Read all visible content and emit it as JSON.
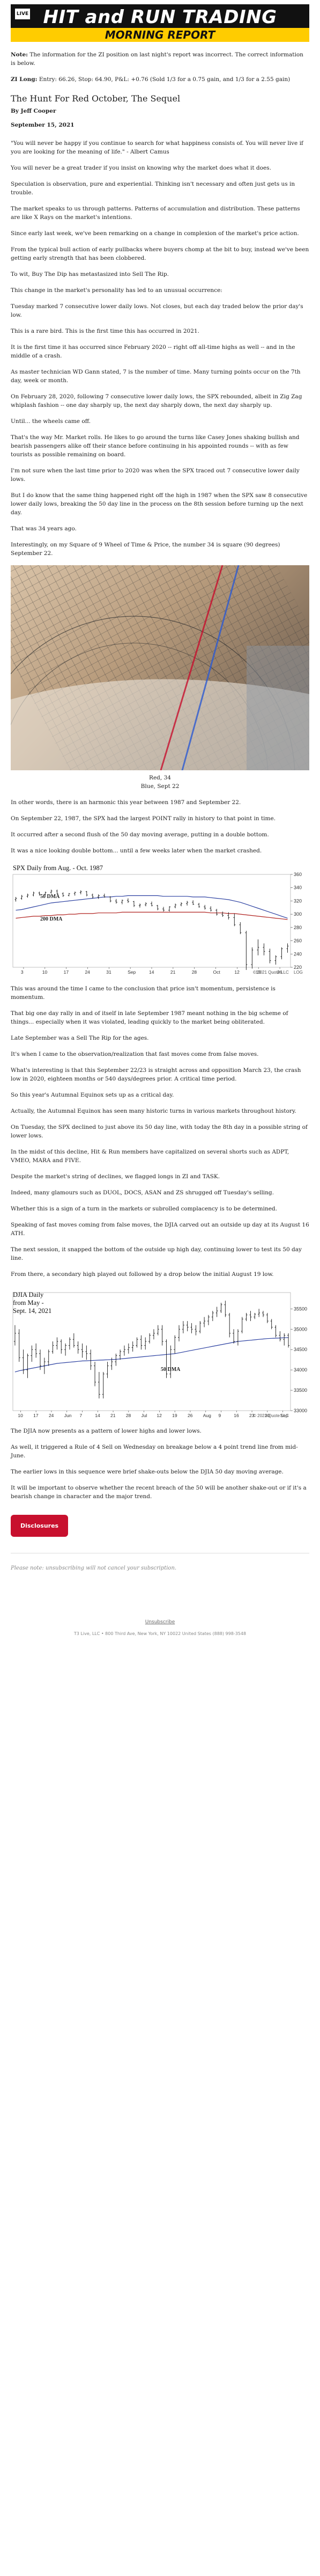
{
  "banner": {
    "logo_text": "LIVE",
    "title": "HIT and RUN TRADING",
    "subtitle": "MORNING REPORT"
  },
  "note": {
    "label": "Note:",
    "text": " The information for the ZI position on last night's report was incorrect. The correct information is below."
  },
  "zi": {
    "label": "ZI Long:",
    "text": " Entry: 66.26, Stop: 64.90, P&L: +0.76 (Sold 1/3 for a 0.75 gain, and 1/3 for a 2.55 gain)"
  },
  "article": {
    "title": "The Hunt For Red October, The Sequel",
    "byline": "By Jeff Cooper",
    "date": "September 15, 2021",
    "paragraphs_a": [
      "\"You will never be happy if you continue to search for what happiness consists of. You will never live if you are looking for the meaning of life.\" - Albert Camus",
      "You will never be a great trader if you insist on knowing why the market does what it does.",
      "Speculation is observation, pure and experiential. Thinking isn't necessary and often just gets us in trouble.",
      "The market speaks to us through patterns. Patterns of accumulation and distribution. These patterns are like X Rays on the market's intentions.",
      "Since early last week, we've been remarking on a change in complexion of the market's price action.",
      "From the typical bull action of early pullbacks where buyers chomp at the bit to buy, instead we've been getting early strength that has been clobbered.",
      "To wit, Buy The Dip has metastasized into Sell The Rip.",
      "This change in the market's personality has led to an unusual occurrence:",
      "Tuesday marked 7 consecutive lower daily lows. Not closes, but each day traded below the prior day's low.",
      "This is a rare bird. This is the first time this has occurred in 2021.",
      "It is the first time it has occurred since February 2020 -- right off all-time highs as well -- and in the middle of a crash.",
      "As master technician WD Gann stated, 7 is the number of time. Many turning points occur on the 7th day, week or month.",
      "On February 28, 2020, following 7 consecutive lower daily lows, the SPX rebounded, albeit in Zig Zag whiplash fashion -- one day sharply up, the next day sharply down, the next day sharply up.",
      "Until... the wheels came off.",
      "That's the way Mr. Market rolls. He likes to go around the turns like Casey Jones shaking bullish and bearish passengers alike off their stance before continuing in his appointed rounds -- with as few tourists as possible remaining on board.",
      "I'm not sure when the last time prior to 2020 was when the SPX traced out 7 consecutive lower daily lows.",
      "But I do know that the same thing happened right off the high in 1987 when the SPX saw 8 consecutive lower daily lows, breaking the 50 day line in the process on the 8th session before turning up the next day.",
      "That was 34 years ago.",
      "Interestingly, on my Square of 9 Wheel of Time & Price, the number 34 is square (90 degrees) September 22."
    ],
    "caption": [
      "Red, 34",
      "Blue, Sept 22"
    ],
    "paragraphs_b": [
      "In other words, there is an harmonic this year between 1987 and September 22.",
      "On September 22, 1987, the SPX had the largest POINT rally in history to that point in time.",
      "It occurred after a second flush of the 50 day moving average, putting in a double bottom.",
      "It was a nice looking double bottom... until a few weeks later when the market crashed."
    ],
    "paragraphs_c": [
      "This was around the time I came to the conclusion that price isn't momentum, persistence is momentum.",
      "That big one day rally in and of itself in late September 1987 meant nothing in the big scheme of things... especially when it was violated, leading quickly to the market being obliterated.",
      "Late September was a Sell The Rip for the ages.",
      "It's when I came to the observation/realization that fast moves come from false moves.",
      "What's interesting is that this September 22/23 is straight across and opposition March 23, the crash low in 2020, eighteen months or 540 days/degrees prior. A critical time period.",
      "So this year's Autumnal Equinox sets up as a critical day.",
      "Actually, the Autumnal Equinox has seen many historic turns in various markets throughout history.",
      "On Tuesday, the SPX declined to just above its 50 day line, with today the 8th day in a possible string of lower lows.",
      "In the midst of this decline, Hit & Run members have capitalized on several shorts such as ADPT, VMEO, MARA and FIVE.",
      "Despite the market's string of declines, we flagged longs in ZI and TASK.",
      "Indeed, many glamours such as DUOL, DOCS, ASAN and ZS shrugged off Tuesday's selling.",
      "Whether this is a sign of a turn in the markets or subrolled complacency is to be determined.",
      "Speaking of fast moves coming from false moves, the DJIA carved out an outside up day at its August 16 ATH.",
      "The next session, it snapped the bottom of the outside up high day, continuing lower to test its 50 day line.",
      "From there, a secondary high played out followed by a drop below the initial August 19 low."
    ],
    "paragraphs_d": [
      "The DJIA now presents as a pattern of lower highs and lower lows.",
      "As well, it triggered a Rule of 4 Sell on Wednesday on breakage below a 4 point trend line from mid-June.",
      "The earlier lows in this sequence were brief shake-outs below the DJIA 50 day moving average.",
      "It will be important to observe whether the recent breach of the 50 will be another shake-out or if it's a bearish change in character and the major trend."
    ]
  },
  "button": {
    "label": "Disclosures"
  },
  "unsubscribe": "Please note: unsubscribing will not cancel your subscription.",
  "footer": {
    "link": "Unsubscribe",
    "address": "T3 Live, LLC • 800 Third Ave, New York, NY 10022 United States (888) 998-3548"
  },
  "chart_data": [
    {
      "type": "bar",
      "title": "SPX Daily from Aug. - Oct. 1987",
      "series_labels": [
        "50 DMA",
        "200 DMA"
      ],
      "ylim": [
        220,
        360
      ],
      "yticks": [
        360,
        340,
        320,
        300,
        280,
        260,
        240,
        220
      ],
      "xticks": [
        "3",
        "10",
        "17",
        "24",
        "31",
        "Sep",
        "14",
        "21",
        "28",
        "Oct",
        "12",
        "19",
        "26"
      ],
      "x_end_label": "LOG",
      "watermark": "© 2021 Quote LLC",
      "ohlc": [
        [
          322,
          326,
          319,
          324
        ],
        [
          324,
          329,
          322,
          327
        ],
        [
          327,
          331,
          325,
          329
        ],
        [
          329,
          334,
          327,
          332
        ],
        [
          332,
          334,
          328,
          330
        ],
        [
          330,
          334,
          329,
          333
        ],
        [
          333,
          337,
          331,
          335
        ],
        [
          335,
          337,
          330,
          331
        ],
        [
          331,
          333,
          326,
          328
        ],
        [
          328,
          332,
          327,
          331
        ],
        [
          331,
          334,
          328,
          333
        ],
        [
          333,
          336,
          330,
          334
        ],
        [
          334,
          335,
          327,
          329
        ],
        [
          329,
          331,
          324,
          326
        ],
        [
          326,
          330,
          323,
          328
        ],
        [
          328,
          331,
          325,
          326
        ],
        [
          326,
          327,
          318,
          320
        ],
        [
          320,
          323,
          316,
          318
        ],
        [
          318,
          322,
          315,
          321
        ],
        [
          321,
          324,
          317,
          319
        ],
        [
          319,
          320,
          311,
          313
        ],
        [
          313,
          316,
          310,
          314
        ],
        [
          314,
          318,
          312,
          316
        ],
        [
          316,
          319,
          312,
          313
        ],
        [
          313,
          314,
          306,
          308
        ],
        [
          308,
          311,
          304,
          306
        ],
        [
          306,
          312,
          304,
          311
        ],
        [
          311,
          316,
          309,
          314
        ],
        [
          314,
          318,
          312,
          316
        ],
        [
          316,
          320,
          313,
          318
        ],
        [
          318,
          321,
          314,
          315
        ],
        [
          315,
          317,
          310,
          311
        ],
        [
          311,
          314,
          307,
          309
        ],
        [
          309,
          312,
          304,
          306
        ],
        [
          306,
          308,
          298,
          300
        ],
        [
          300,
          304,
          296,
          298
        ],
        [
          298,
          303,
          292,
          295
        ],
        [
          295,
          301,
          282,
          284
        ],
        [
          284,
          288,
          270,
          272
        ],
        [
          272,
          275,
          216,
          224
        ],
        [
          224,
          250,
          218,
          246
        ],
        [
          246,
          262,
          238,
          250
        ],
        [
          250,
          256,
          238,
          244
        ],
        [
          244,
          248,
          226,
          230
        ],
        [
          230,
          238,
          224,
          236
        ],
        [
          236,
          250,
          232,
          248
        ],
        [
          248,
          256,
          242,
          252
        ]
      ],
      "ma50": [
        306,
        307,
        309,
        311,
        313,
        315,
        317,
        318,
        319,
        320,
        321,
        322,
        323,
        324,
        325,
        326,
        326,
        327,
        327,
        328,
        328,
        328,
        328,
        328,
        328,
        327,
        327,
        327,
        327,
        327,
        326,
        326,
        326,
        325,
        324,
        323,
        322,
        320,
        318,
        315,
        312,
        309,
        306,
        303,
        300,
        297,
        294
      ],
      "ma200": [
        294,
        295,
        296,
        297,
        297,
        298,
        298,
        299,
        299,
        300,
        300,
        301,
        301,
        301,
        302,
        302,
        302,
        302,
        303,
        303,
        303,
        303,
        303,
        303,
        303,
        303,
        303,
        303,
        303,
        303,
        303,
        303,
        303,
        302,
        302,
        302,
        301,
        301,
        300,
        299,
        298,
        297,
        296,
        295,
        294,
        293,
        292
      ]
    },
    {
      "type": "bar",
      "title": "DJIA Daily from May - Sept. 14, 2021",
      "series_labels": [
        "50 DMA"
      ],
      "ylim": [
        33000,
        35900
      ],
      "yticks": [
        35500,
        35000,
        34500,
        34000,
        33500,
        33000
      ],
      "xticks": [
        "10",
        "17",
        "24",
        "Jun",
        "7",
        "14",
        "21",
        "28",
        "Jul",
        "12",
        "19",
        "26",
        "Aug",
        "9",
        "16",
        "23",
        "30",
        "Sep"
      ],
      "watermark": "© 2021 Quote LLC",
      "ohlc": [
        [
          34700,
          35100,
          34600,
          34900
        ],
        [
          34900,
          35000,
          34200,
          34300
        ],
        [
          34300,
          34500,
          33900,
          34000
        ],
        [
          34000,
          34400,
          33800,
          34350
        ],
        [
          34350,
          34600,
          34200,
          34500
        ],
        [
          34500,
          34650,
          34300,
          34400
        ],
        [
          34400,
          34500,
          34000,
          34100
        ],
        [
          34100,
          34300,
          33900,
          34200
        ],
        [
          34200,
          34500,
          34100,
          34450
        ],
        [
          34450,
          34700,
          34400,
          34600
        ],
        [
          34600,
          34800,
          34500,
          34700
        ],
        [
          34700,
          34750,
          34400,
          34500
        ],
        [
          34500,
          34650,
          34350,
          34600
        ],
        [
          34600,
          34800,
          34500,
          34750
        ],
        [
          34750,
          34900,
          34550,
          34600
        ],
        [
          34600,
          34700,
          34400,
          34500
        ],
        [
          34500,
          34650,
          34300,
          34450
        ],
        [
          34450,
          34600,
          34250,
          34400
        ],
        [
          34400,
          34500,
          34000,
          34100
        ],
        [
          34100,
          34200,
          33600,
          33700
        ],
        [
          33700,
          33950,
          33300,
          33400
        ],
        [
          33400,
          33950,
          33300,
          33900
        ],
        [
          33900,
          34200,
          33800,
          34100
        ],
        [
          34100,
          34300,
          34000,
          34200
        ],
        [
          34200,
          34400,
          34100,
          34350
        ],
        [
          34350,
          34500,
          34250,
          34450
        ],
        [
          34450,
          34600,
          34350,
          34500
        ],
        [
          34500,
          34650,
          34400,
          34550
        ],
        [
          34550,
          34700,
          34450,
          34600
        ],
        [
          34600,
          34800,
          34550,
          34750
        ],
        [
          34750,
          34850,
          34500,
          34600
        ],
        [
          34600,
          34800,
          34500,
          34700
        ],
        [
          34700,
          34900,
          34650,
          34850
        ],
        [
          34850,
          35000,
          34750,
          34900
        ],
        [
          34900,
          35100,
          34850,
          35000
        ],
        [
          35000,
          35100,
          34600,
          34700
        ],
        [
          34700,
          34750,
          33800,
          33900
        ],
        [
          33900,
          34600,
          33800,
          34500
        ],
        [
          34500,
          34850,
          34400,
          34800
        ],
        [
          34800,
          35100,
          34700,
          35000
        ],
        [
          35000,
          35200,
          34900,
          35100
        ],
        [
          35100,
          35200,
          34950,
          35050
        ],
        [
          35050,
          35150,
          34900,
          35000
        ],
        [
          35000,
          35100,
          34850,
          34950
        ],
        [
          34950,
          35200,
          34900,
          35150
        ],
        [
          35150,
          35300,
          35050,
          35200
        ],
        [
          35200,
          35350,
          35100,
          35300
        ],
        [
          35300,
          35450,
          35200,
          35400
        ],
        [
          35400,
          35550,
          35300,
          35450
        ],
        [
          35450,
          35650,
          35400,
          35600
        ],
        [
          35600,
          35700,
          35300,
          35350
        ],
        [
          35350,
          35400,
          34800,
          34900
        ],
        [
          34900,
          35000,
          34650,
          34700
        ],
        [
          34700,
          35000,
          34600,
          34950
        ],
        [
          34950,
          35300,
          34900,
          35250
        ],
        [
          35250,
          35400,
          35200,
          35350
        ],
        [
          35350,
          35450,
          35200,
          35300
        ],
        [
          35300,
          35400,
          35250,
          35370
        ],
        [
          35370,
          35500,
          35300,
          35400
        ],
        [
          35400,
          35450,
          35300,
          35350
        ],
        [
          35350,
          35400,
          35150,
          35200
        ],
        [
          35200,
          35250,
          35000,
          35050
        ],
        [
          35050,
          35100,
          34800,
          34850
        ],
        [
          34850,
          34950,
          34700,
          34750
        ],
        [
          34750,
          34900,
          34600,
          34850
        ],
        [
          34850,
          34900,
          34550,
          34600
        ]
      ],
      "ma50": [
        33950,
        33980,
        34000,
        34020,
        34040,
        34060,
        34080,
        34100,
        34120,
        34140,
        34160,
        34170,
        34180,
        34190,
        34200,
        34210,
        34220,
        34225,
        34230,
        34235,
        34240,
        34245,
        34250,
        34255,
        34260,
        34270,
        34280,
        34290,
        34300,
        34310,
        34320,
        34330,
        34340,
        34350,
        34360,
        34370,
        34380,
        34390,
        34400,
        34420,
        34440,
        34460,
        34480,
        34500,
        34520,
        34540,
        34560,
        34580,
        34600,
        34620,
        34640,
        34660,
        34680,
        34700,
        34710,
        34720,
        34730,
        34740,
        34750,
        34760,
        34770,
        34775,
        34780,
        34785,
        34790,
        34795
      ]
    }
  ]
}
